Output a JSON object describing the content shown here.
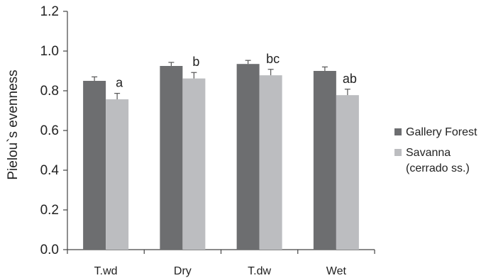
{
  "chart_data": {
    "type": "bar",
    "title": "",
    "xlabel": "",
    "ylabel": "Pielou`s evenness",
    "ylim": [
      0,
      1.2
    ],
    "yticks": [
      "0.0",
      "0.2",
      "0.4",
      "0.6",
      "0.8",
      "1.0",
      "1.2"
    ],
    "categories": [
      "T.wd",
      "Dry",
      "T.dw",
      "Wet"
    ],
    "series": [
      {
        "name": "Gallery Forest",
        "color": "#6d6e70",
        "values": [
          0.85,
          0.925,
          0.935,
          0.9
        ],
        "errors": [
          0.02,
          0.018,
          0.018,
          0.02
        ]
      },
      {
        "name": "Savanna\n(cerrado ss.)",
        "color": "#bcbdc0",
        "values": [
          0.757,
          0.862,
          0.878,
          0.778
        ],
        "errors": [
          0.03,
          0.03,
          0.03,
          0.03
        ]
      }
    ],
    "significance_labels": [
      "a",
      "b",
      "bc",
      "ab"
    ],
    "grid": false,
    "legend_position": "right"
  }
}
